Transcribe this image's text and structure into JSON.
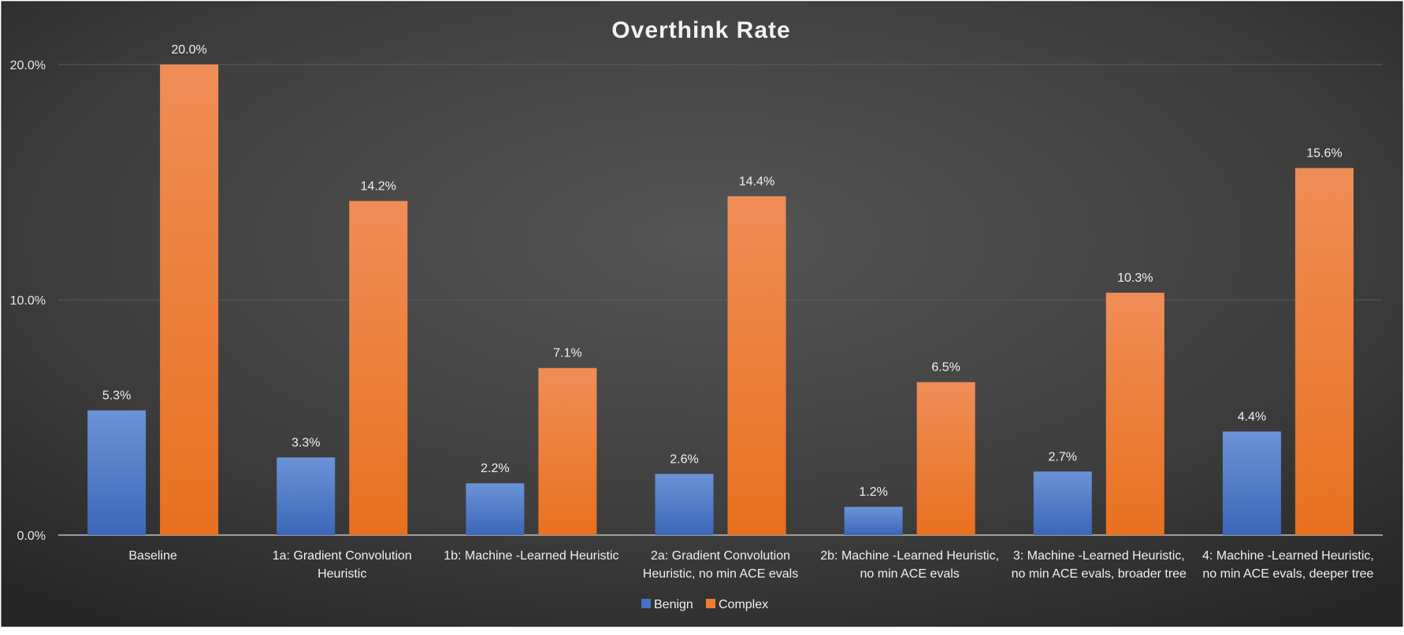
{
  "chart_data": {
    "type": "bar",
    "title": "Overthink Rate",
    "categories": [
      [
        "Baseline"
      ],
      [
        "1a: Gradient Convolution",
        "Heuristic"
      ],
      [
        "1b: Machine -Learned Heuristic"
      ],
      [
        "2a: Gradient Convolution",
        "Heuristic, no min ACE evals"
      ],
      [
        "2b: Machine -Learned Heuristic,",
        "no min ACE evals"
      ],
      [
        "3: Machine -Learned Heuristic,",
        "no min ACE evals, broader tree"
      ],
      [
        "4: Machine -Learned Heuristic,",
        "no min ACE evals, deeper tree"
      ]
    ],
    "series": [
      {
        "name": "Benign",
        "color": "#4472C4",
        "values": [
          5.3,
          3.3,
          2.2,
          2.6,
          1.2,
          2.7,
          4.4
        ],
        "labels": [
          "5.3%",
          "3.3%",
          "2.2%",
          "2.6%",
          "1.2%",
          "2.7%",
          "4.4%"
        ]
      },
      {
        "name": "Complex",
        "color": "#ED7D31",
        "values": [
          20.0,
          14.2,
          7.1,
          14.4,
          6.5,
          10.3,
          15.6
        ],
        "labels": [
          "20.0%",
          "14.2%",
          "7.1%",
          "14.4%",
          "6.5%",
          "10.3%",
          "15.6%"
        ]
      }
    ],
    "ylim": [
      0,
      20
    ],
    "yticks": [
      0,
      10,
      20
    ],
    "ytick_labels": [
      "0.0%",
      "10.0%",
      "20.0%"
    ],
    "grid": true,
    "legend_position": "bottom-center"
  }
}
